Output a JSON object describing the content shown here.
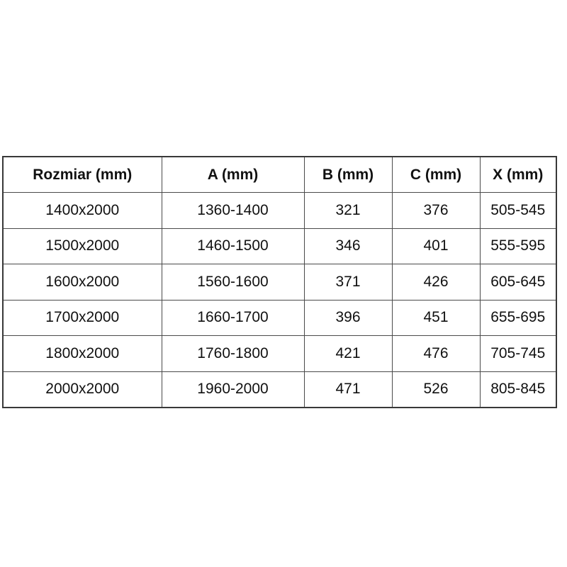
{
  "chart_data": {
    "type": "table",
    "columns": [
      "Rozmiar (mm)",
      "A (mm)",
      "B (mm)",
      "C (mm)",
      "X (mm)"
    ],
    "rows": [
      [
        "1400x2000",
        "1360-1400",
        "321",
        "376",
        "505-545"
      ],
      [
        "1500x2000",
        "1460-1500",
        "346",
        "401",
        "555-595"
      ],
      [
        "1600x2000",
        "1560-1600",
        "371",
        "426",
        "605-645"
      ],
      [
        "1700x2000",
        "1660-1700",
        "396",
        "451",
        "655-695"
      ],
      [
        "1800x2000",
        "1760-1800",
        "421",
        "476",
        "705-745"
      ],
      [
        "2000x2000",
        "1960-2000",
        "471",
        "526",
        "805-845"
      ]
    ],
    "title": "",
    "layout": {
      "grid": true,
      "header_bold": true
    }
  },
  "colors": {
    "background": "#ffffff",
    "border": "#4a4a4a",
    "text": "#111111"
  }
}
